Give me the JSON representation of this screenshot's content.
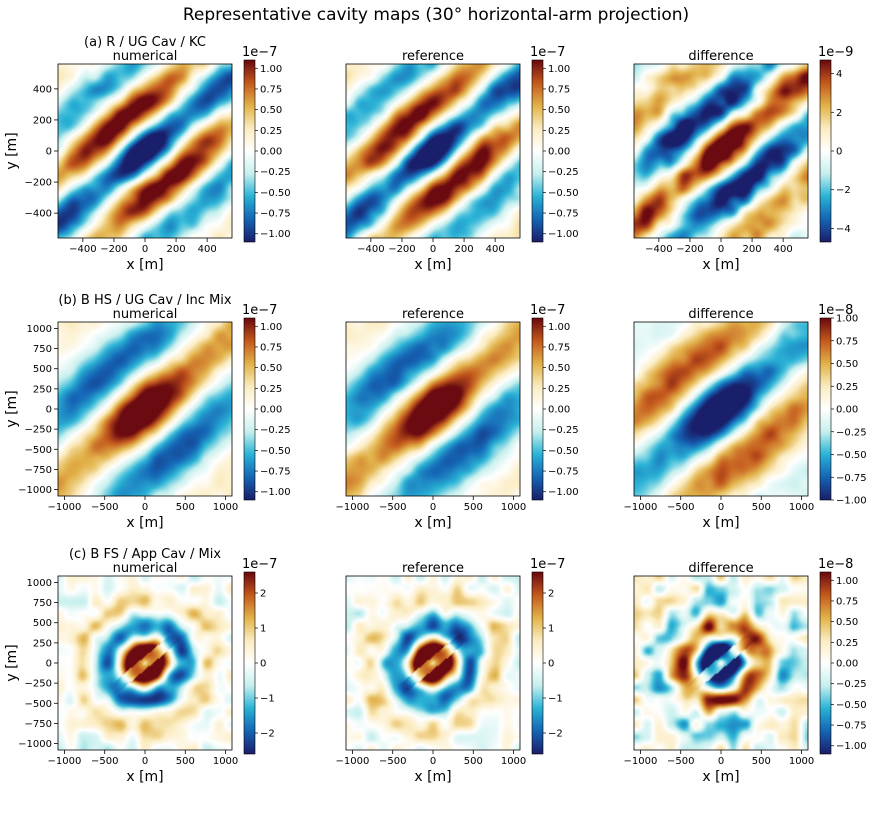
{
  "figure": {
    "title": "Representative cavity maps (30$^\\circ$ horizontal-arm projection)",
    "title_display": "Representative cavity maps (30° horizontal-arm projection)"
  },
  "colormap": {
    "name": "RdYlBu-like diverging (navy → cyan → white → gold → dark red)",
    "stops": [
      "#1a1f6b",
      "#1565b5",
      "#2bb3d6",
      "#c7f0ee",
      "#ffffff",
      "#fbecc0",
      "#e2b24a",
      "#c45a1d",
      "#6b0a10"
    ]
  },
  "chart_data": [
    {
      "type": "heatmap",
      "row": 0,
      "col": 0,
      "title": "numerical",
      "row_label": "(a) R / UG Cav / KC",
      "xlabel": "x [m]",
      "ylabel": "y [m]",
      "xlim": [
        -560,
        560
      ],
      "ylim": [
        -560,
        560
      ],
      "xticks": [
        -400,
        -200,
        0,
        200,
        400
      ],
      "yticks": [
        -400,
        -200,
        0,
        200,
        400
      ],
      "cbar_exponent": "1e−7",
      "cbar_ticks": [
        "−1.00",
        "−0.75",
        "−0.50",
        "−0.25",
        "0.00",
        "0.25",
        "0.50",
        "0.75",
        "1.00"
      ],
      "vlim": [
        -1.1,
        1.1
      ],
      "pattern": {
        "kind": "stripes",
        "k": 6.8,
        "angle": -50,
        "elong": 0.38,
        "envelope": 0.95,
        "sign": -1,
        "noise": 0.12
      }
    },
    {
      "type": "heatmap",
      "row": 0,
      "col": 1,
      "title": "reference",
      "xlabel": "x [m]",
      "ylabel": "",
      "xlim": [
        -560,
        560
      ],
      "ylim": [
        -560,
        560
      ],
      "xticks": [
        -400,
        -200,
        0,
        200,
        400
      ],
      "yticks": [],
      "cbar_exponent": "1e−7",
      "cbar_ticks": [
        "−1.00",
        "−0.75",
        "−0.50",
        "−0.25",
        "0.00",
        "0.25",
        "0.50",
        "0.75",
        "1.00"
      ],
      "vlim": [
        -1.1,
        1.1
      ],
      "pattern": {
        "kind": "stripes",
        "k": 6.8,
        "angle": -50,
        "elong": 0.38,
        "envelope": 0.95,
        "sign": -1,
        "noise": 0.12
      }
    },
    {
      "type": "heatmap",
      "row": 0,
      "col": 2,
      "title": "difference",
      "xlabel": "x [m]",
      "ylabel": "",
      "xlim": [
        -560,
        560
      ],
      "ylim": [
        -560,
        560
      ],
      "xticks": [
        -400,
        -200,
        0,
        200,
        400
      ],
      "yticks": [],
      "cbar_exponent": "1e−9",
      "cbar_ticks": [
        "−4",
        "−2",
        "0",
        "2",
        "4"
      ],
      "vlim": [
        -4.7,
        4.7
      ],
      "pattern": {
        "kind": "stripes",
        "k": 6.5,
        "angle": -50,
        "elong": 0.38,
        "envelope": 1.0,
        "sign": 1,
        "noise": 0.22
      }
    },
    {
      "type": "heatmap",
      "row": 1,
      "col": 0,
      "title": "numerical",
      "row_label": "(b) B HS / UG Cav / Inc Mix",
      "xlabel": "x [m]",
      "ylabel": "y [m]",
      "xlim": [
        -1080,
        1080
      ],
      "ylim": [
        -1080,
        1080
      ],
      "xticks": [
        -1000,
        -500,
        0,
        500,
        1000
      ],
      "yticks": [
        -1000,
        -750,
        -500,
        -250,
        0,
        250,
        500,
        750,
        1000
      ],
      "cbar_exponent": "1e−7",
      "cbar_ticks": [
        "−1.00",
        "−0.75",
        "−0.50",
        "−0.25",
        "0.00",
        "0.25",
        "0.50",
        "0.75",
        "1.00"
      ],
      "vlim": [
        -1.1,
        1.1
      ],
      "pattern": {
        "kind": "stripes",
        "k": 4.6,
        "angle": -50,
        "elong": 0.45,
        "envelope": 0.85,
        "sign": 1,
        "noise": 0.08
      }
    },
    {
      "type": "heatmap",
      "row": 1,
      "col": 1,
      "title": "reference",
      "xlabel": "x [m]",
      "ylabel": "",
      "xlim": [
        -1080,
        1080
      ],
      "ylim": [
        -1080,
        1080
      ],
      "xticks": [
        -1000,
        -500,
        0,
        500,
        1000
      ],
      "yticks": [],
      "cbar_exponent": "1e−7",
      "cbar_ticks": [
        "−1.00",
        "−0.75",
        "−0.50",
        "−0.25",
        "0.00",
        "0.25",
        "0.50",
        "0.75",
        "1.00"
      ],
      "vlim": [
        -1.1,
        1.1
      ],
      "pattern": {
        "kind": "stripes",
        "k": 4.6,
        "angle": -50,
        "elong": 0.45,
        "envelope": 0.85,
        "sign": 1,
        "noise": 0.08
      }
    },
    {
      "type": "heatmap",
      "row": 1,
      "col": 2,
      "title": "difference",
      "xlabel": "x [m]",
      "ylabel": "",
      "xlim": [
        -1080,
        1080
      ],
      "ylim": [
        -1080,
        1080
      ],
      "xticks": [
        -1000,
        -500,
        0,
        500,
        1000
      ],
      "yticks": [],
      "cbar_exponent": "1e−8",
      "cbar_ticks": [
        "−1.00",
        "−0.75",
        "−0.50",
        "−0.25",
        "0.00",
        "0.25",
        "0.50",
        "0.75",
        "1.00"
      ],
      "vlim": [
        -1.0,
        1.0
      ],
      "pattern": {
        "kind": "stripes",
        "k": 4.6,
        "angle": -50,
        "elong": 0.45,
        "envelope": 0.85,
        "sign": -1,
        "noise": 0.1
      }
    },
    {
      "type": "heatmap",
      "row": 2,
      "col": 0,
      "title": "numerical",
      "row_label": "(c) B FS / App Cav / Mix",
      "xlabel": "x [m]",
      "ylabel": "y [m]",
      "xlim": [
        -1080,
        1080
      ],
      "ylim": [
        -1080,
        1080
      ],
      "xticks": [
        -1000,
        -500,
        0,
        500,
        1000
      ],
      "yticks": [
        -1000,
        -750,
        -500,
        -250,
        0,
        250,
        500,
        750,
        1000
      ],
      "cbar_exponent": "1e−7",
      "cbar_ticks": [
        "−2",
        "−1",
        "0",
        "1",
        "2"
      ],
      "vlim": [
        -2.6,
        2.6
      ],
      "pattern": {
        "kind": "rings",
        "k": 9.5,
        "angle": -50,
        "elong": 0.9,
        "envelope": 0.6,
        "sign": 1,
        "noise": 0.25
      }
    },
    {
      "type": "heatmap",
      "row": 2,
      "col": 1,
      "title": "reference",
      "xlabel": "x [m]",
      "ylabel": "",
      "xlim": [
        -1080,
        1080
      ],
      "ylim": [
        -1080,
        1080
      ],
      "xticks": [
        -1000,
        -500,
        0,
        500,
        1000
      ],
      "yticks": [],
      "cbar_exponent": "1e−7",
      "cbar_ticks": [
        "−2",
        "−1",
        "0",
        "1",
        "2"
      ],
      "vlim": [
        -2.6,
        2.6
      ],
      "pattern": {
        "kind": "rings",
        "k": 9.5,
        "angle": -50,
        "elong": 0.9,
        "envelope": 0.6,
        "sign": 1,
        "noise": 0.25
      }
    },
    {
      "type": "heatmap",
      "row": 2,
      "col": 2,
      "title": "difference",
      "xlabel": "x [m]",
      "ylabel": "",
      "xlim": [
        -1080,
        1080
      ],
      "ylim": [
        -1080,
        1080
      ],
      "xticks": [
        -1000,
        -500,
        0,
        500,
        1000
      ],
      "yticks": [],
      "cbar_exponent": "1e−8",
      "cbar_ticks": [
        "−1.00",
        "−0.75",
        "−0.50",
        "−0.25",
        "0.00",
        "0.25",
        "0.50",
        "0.75",
        "1.00"
      ],
      "vlim": [
        -1.1,
        1.1
      ],
      "pattern": {
        "kind": "rings",
        "k": 9.5,
        "angle": -50,
        "elong": 0.9,
        "envelope": 0.6,
        "sign": -1,
        "noise": 0.4
      }
    }
  ]
}
